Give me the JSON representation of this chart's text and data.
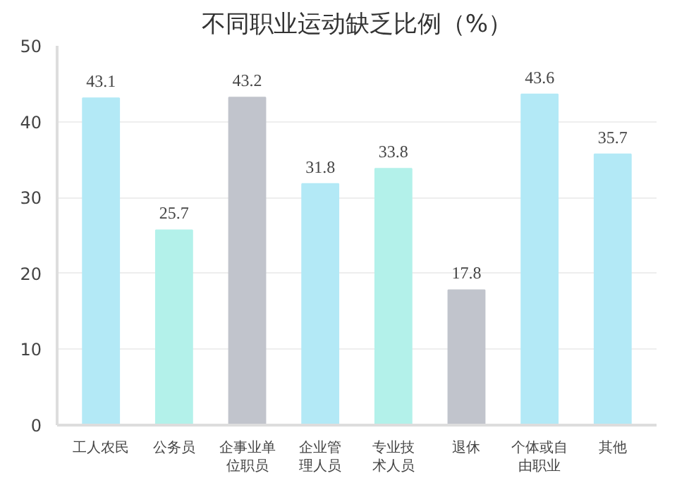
{
  "chart_data": {
    "type": "bar",
    "title": "不同职业运动缺乏比例（%）",
    "categories": [
      "工人农民",
      "公务员",
      "企事业单位职员",
      "企业管理人员",
      "专业技术人员",
      "退休",
      "个体或自由职业",
      "其他"
    ],
    "values": [
      43.1,
      25.7,
      43.2,
      31.8,
      33.8,
      17.8,
      43.6,
      35.7
    ],
    "colors": [
      "#b3e9f6",
      "#b3f1ea",
      "#c1c4cc",
      "#b3e9f6",
      "#b3f1ea",
      "#c1c4cc",
      "#b3e9f6",
      "#b3e9f6"
    ],
    "ylim": [
      0,
      50
    ],
    "yticks": [
      0,
      10,
      20,
      30,
      40,
      50
    ],
    "grid": "y",
    "data_labels": true
  }
}
